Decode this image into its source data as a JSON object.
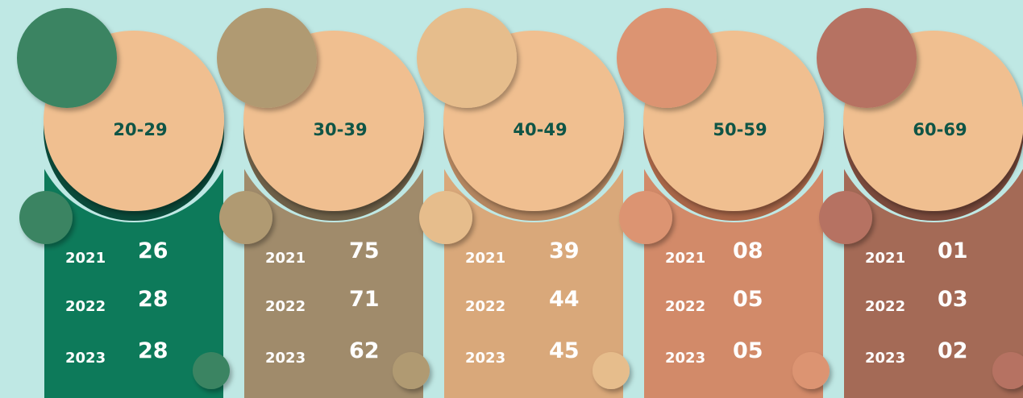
{
  "groups": [
    {
      "label": "20-29",
      "rows": [
        {
          "year": "2021",
          "value": "26"
        },
        {
          "year": "2022",
          "value": "28"
        },
        {
          "year": "2023",
          "value": "28"
        }
      ]
    },
    {
      "label": "30-39",
      "rows": [
        {
          "year": "2021",
          "value": "75"
        },
        {
          "year": "2022",
          "value": "71"
        },
        {
          "year": "2023",
          "value": "62"
        }
      ]
    },
    {
      "label": "40-49",
      "rows": [
        {
          "year": "2021",
          "value": "39"
        },
        {
          "year": "2022",
          "value": "44"
        },
        {
          "year": "2023",
          "value": "45"
        }
      ]
    },
    {
      "label": "50-59",
      "rows": [
        {
          "year": "2021",
          "value": "08"
        },
        {
          "year": "2022",
          "value": "05"
        },
        {
          "year": "2023",
          "value": "05"
        }
      ]
    },
    {
      "label": "60-69",
      "rows": [
        {
          "year": "2021",
          "value": "01"
        },
        {
          "year": "2022",
          "value": "03"
        },
        {
          "year": "2023",
          "value": "02"
        }
      ]
    }
  ]
}
